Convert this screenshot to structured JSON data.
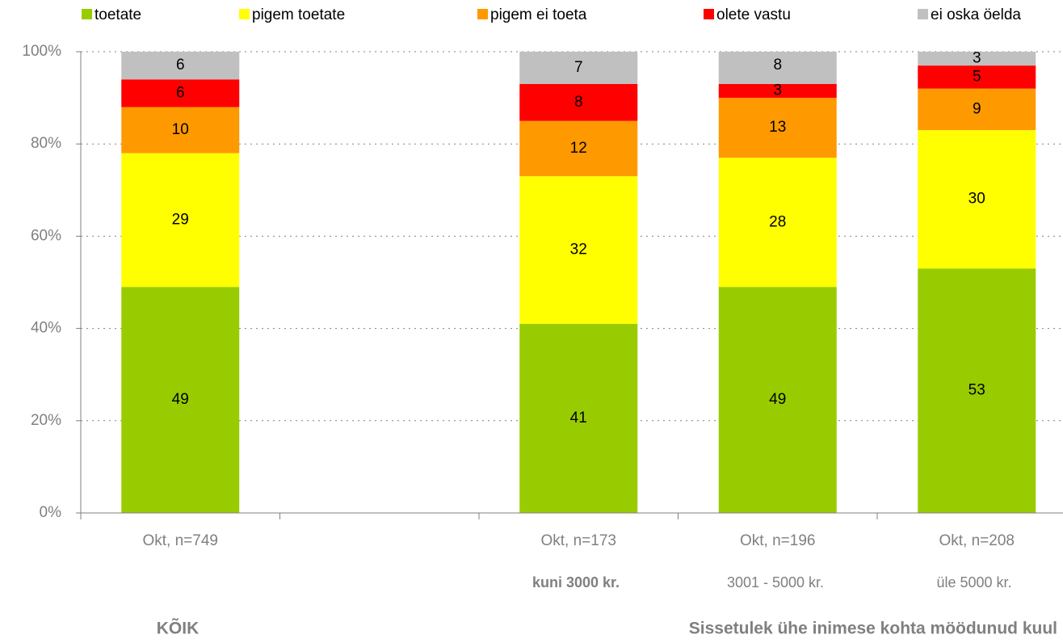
{
  "chart_data": {
    "type": "bar",
    "stacked": true,
    "categories": [
      "Okt, n=749",
      null,
      "Okt, n=173",
      "Okt, n=196",
      "Okt, n=208"
    ],
    "sublabels": [
      "kuni 3000 kr.",
      "3001 - 5000 kr.",
      "üle 5000 kr."
    ],
    "group_labels": [
      "KÕIK",
      "Sissetulek ühe inimese kohta möödunud kuul"
    ],
    "series": [
      {
        "name": "toetate",
        "color": "#99cc00",
        "values": [
          49,
          null,
          41,
          49,
          53
        ]
      },
      {
        "name": "pigem toetate",
        "color": "#ffff00",
        "values": [
          29,
          null,
          32,
          28,
          30
        ]
      },
      {
        "name": "pigem ei toeta",
        "color": "#ff9900",
        "values": [
          10,
          null,
          12,
          13,
          9
        ]
      },
      {
        "name": "olete vastu",
        "color": "#ff0000",
        "values": [
          6,
          null,
          8,
          3,
          5
        ]
      },
      {
        "name": "ei oska öelda",
        "color": "#c0c0c0",
        "values": [
          6,
          null,
          7,
          8,
          3
        ]
      }
    ],
    "ylim": [
      0,
      100
    ],
    "yticks": [
      {
        "value": 0,
        "label": "0%"
      },
      {
        "value": 20,
        "label": "20%"
      },
      {
        "value": 40,
        "label": "40%"
      },
      {
        "value": 60,
        "label": "60%"
      },
      {
        "value": 80,
        "label": "80%"
      },
      {
        "value": 100,
        "label": "100%"
      }
    ],
    "grid": true,
    "legend": "top"
  }
}
